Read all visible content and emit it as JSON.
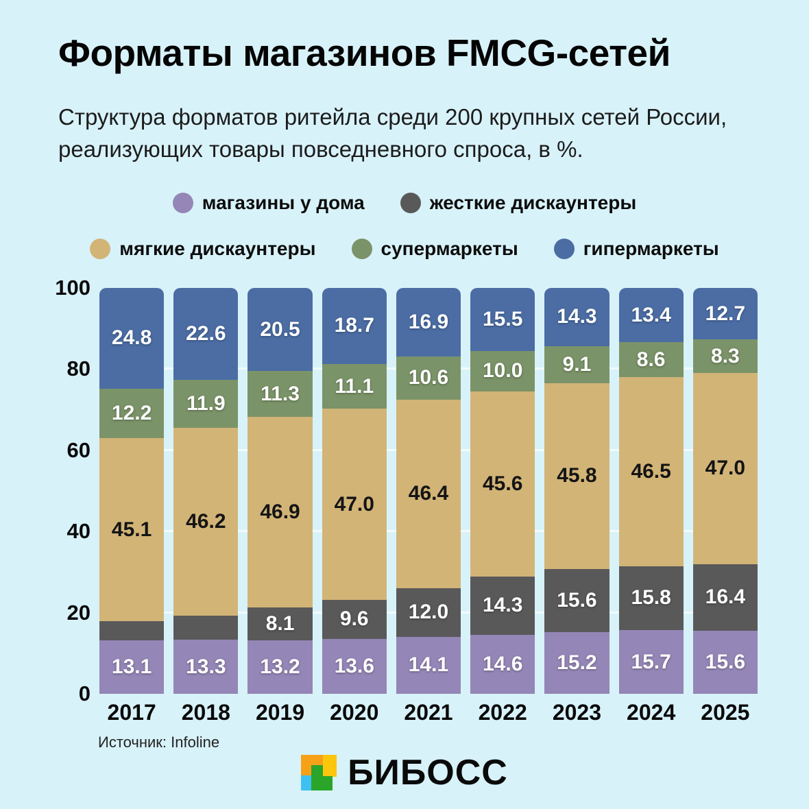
{
  "page": {
    "title": "Форматы магазинов FMCG-сетей",
    "subtitle": "Структура форматов ритейла среди 200 крупных сетей России, реализующих товары повседневного спроса, в %.",
    "source": "Источник: Infoline",
    "background_color": "#d8f2f9"
  },
  "legend": {
    "row1": [
      {
        "label": "магазины у дома",
        "color": "#9486b6"
      },
      {
        "label": "жесткие дискаунтеры",
        "color": "#595959"
      }
    ],
    "row2": [
      {
        "label": "мягкие дискаунтеры",
        "color": "#d2b477"
      },
      {
        "label": "супермаркеты",
        "color": "#7b9368"
      },
      {
        "label": "гипермаркеты",
        "color": "#4b6da4"
      }
    ]
  },
  "chart_data": {
    "type": "bar",
    "stacked": true,
    "unit": "%",
    "title": "Форматы магазинов FMCG-сетей",
    "categories": [
      "2017",
      "2018",
      "2019",
      "2020",
      "2021",
      "2022",
      "2023",
      "2024",
      "2025"
    ],
    "series": [
      {
        "name": "магазины у дома",
        "color": "#9486b6",
        "label_style": "light",
        "values": [
          13.1,
          13.3,
          13.2,
          13.6,
          14.1,
          14.6,
          15.2,
          15.7,
          15.6
        ],
        "labels": [
          "13.1",
          "13.3",
          "13.2",
          "13.6",
          "14.1",
          "14.6",
          "15.2",
          "15.7",
          "15.6"
        ]
      },
      {
        "name": "жесткие дискаунтеры",
        "color": "#595959",
        "label_style": "light",
        "values": [
          4.8,
          6.0,
          8.1,
          9.6,
          12.0,
          14.3,
          15.6,
          15.8,
          16.4
        ],
        "labels": [
          "",
          "",
          "8.1",
          "9.6",
          "12.0",
          "14.3",
          "15.6",
          "15.8",
          "16.4"
        ]
      },
      {
        "name": "мягкие дискаунтеры",
        "color": "#d2b477",
        "label_style": "dark",
        "values": [
          45.1,
          46.2,
          46.9,
          47.0,
          46.4,
          45.6,
          45.8,
          46.5,
          47.0
        ],
        "labels": [
          "45.1",
          "46.2",
          "46.9",
          "47.0",
          "46.4",
          "45.6",
          "45.8",
          "46.5",
          "47.0"
        ]
      },
      {
        "name": "супермаркеты",
        "color": "#7b9368",
        "label_style": "light",
        "values": [
          12.2,
          11.9,
          11.3,
          11.1,
          10.6,
          10.0,
          9.1,
          8.6,
          8.3
        ],
        "labels": [
          "12.2",
          "11.9",
          "11.3",
          "11.1",
          "10.6",
          "10.0",
          "9.1",
          "8.6",
          "8.3"
        ]
      },
      {
        "name": "гипермаркеты",
        "color": "#4b6da4",
        "label_style": "light",
        "values": [
          24.8,
          22.6,
          20.5,
          18.7,
          16.9,
          15.5,
          14.3,
          13.4,
          12.7
        ],
        "labels": [
          "24.8",
          "22.6",
          "20.5",
          "18.7",
          "16.9",
          "15.5",
          "14.3",
          "13.4",
          "12.7"
        ]
      }
    ],
    "y_ticks": [
      0,
      20,
      40,
      60,
      80,
      100
    ],
    "ylim": [
      0,
      100
    ],
    "grid": true,
    "legend_position": "top"
  },
  "logo": {
    "text": "БИБОСС",
    "icon_colors": {
      "orange": "#f6a118",
      "yellow": "#fcc60d",
      "cyan": "#3fc0f0",
      "green": "#2aa52a"
    }
  }
}
